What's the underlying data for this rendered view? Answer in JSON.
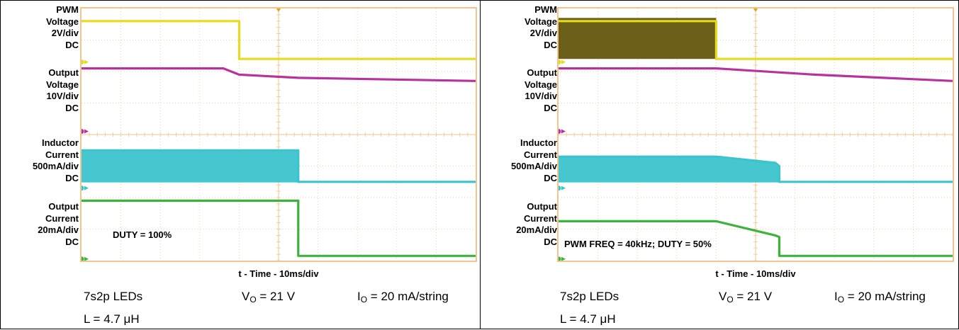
{
  "panels": [
    {
      "channel_labels": [
        "PWM\nVoltage\n2V/div\nDC",
        "Output\nVoltage\n10V/div\nDC",
        "Inductor\nCurrent\n500mA/div\nDC",
        "Output\nCurrent\n20mA/div\nDC"
      ],
      "xlabel": "t - Time - 10ms/div",
      "annotation": "DUTY = 100%",
      "conditions": {
        "leds": "7s2p LEDs",
        "vo_main": "V",
        "vo_sub": "O",
        "vo_val": " = 21 V",
        "io_main": "I",
        "io_sub": "O",
        "io_val": " = 20 mA/string",
        "inductor": "L = 4.7 μH"
      }
    },
    {
      "channel_labels": [
        "PWM\nVoltage\n2V/div\nDC",
        "Output\nVoltage\n10V/div\nDC",
        "Inductor\nCurrent\n500mA/div\nDC",
        "Output\nCurrent\n20mA/div\nDC"
      ],
      "xlabel": "t - Time - 10ms/div",
      "annotation": "PWM FREQ = 40kHz; DUTY = 50%",
      "conditions": {
        "leds": "7s2p LEDs",
        "vo_main": "V",
        "vo_sub": "O",
        "vo_val": " = 21 V",
        "io_main": "I",
        "io_sub": "O",
        "io_val": " = 20 mA/string",
        "inductor": "L = 4.7 μH"
      }
    }
  ],
  "colors": {
    "grid": "#f2c48e",
    "ch1_pwm": "#e6dc1c",
    "ch1_dark": "#6b5f1a",
    "ch2_vout": "#b8329e",
    "ch3_il": "#3cc4cc",
    "ch4_iout": "#3cb43c"
  },
  "chart_data": [
    {
      "type": "line",
      "title": "",
      "xlabel": "t - Time - 10ms/div",
      "x_divisions": 10,
      "y_divisions": 8,
      "x_unit": "div",
      "series": [
        {
          "name": "PWM Voltage",
          "x": [
            0,
            4.0,
            4.0,
            10
          ],
          "y": [
            7.6,
            7.6,
            6.4,
            6.4
          ]
        },
        {
          "name": "Output Voltage",
          "x": [
            0,
            3.6,
            4.0,
            5.5,
            10
          ],
          "y": [
            6.1,
            6.1,
            5.9,
            5.8,
            5.7
          ]
        },
        {
          "name": "Inductor Current",
          "x": [
            0,
            5.5,
            5.5,
            10
          ],
          "y": [
            3.5,
            3.5,
            2.5,
            2.5
          ]
        },
        {
          "name": "Output Current",
          "x": [
            0,
            5.5,
            5.5,
            10
          ],
          "y": [
            1.9,
            1.9,
            0.15,
            0.15
          ]
        }
      ]
    },
    {
      "type": "line",
      "title": "",
      "xlabel": "t - Time - 10ms/div",
      "x_divisions": 10,
      "y_divisions": 8,
      "x_unit": "div",
      "series": [
        {
          "name": "PWM Voltage",
          "x": [
            0,
            4.0,
            4.0,
            10
          ],
          "y": [
            7.6,
            7.6,
            6.4,
            6.4
          ]
        },
        {
          "name": "Output Voltage",
          "x": [
            0,
            4.0,
            6.5,
            10
          ],
          "y": [
            6.1,
            6.1,
            5.9,
            5.7
          ]
        },
        {
          "name": "Inductor Current",
          "x": [
            0,
            4.0,
            5.5,
            5.6,
            5.6,
            10
          ],
          "y": [
            3.3,
            3.3,
            3.1,
            3.0,
            2.5,
            2.5
          ]
        },
        {
          "name": "Output Current",
          "x": [
            0,
            4.0,
            5.5,
            5.6,
            5.6,
            10
          ],
          "y": [
            1.25,
            1.25,
            0.8,
            0.75,
            0.15,
            0.15
          ]
        }
      ]
    }
  ]
}
